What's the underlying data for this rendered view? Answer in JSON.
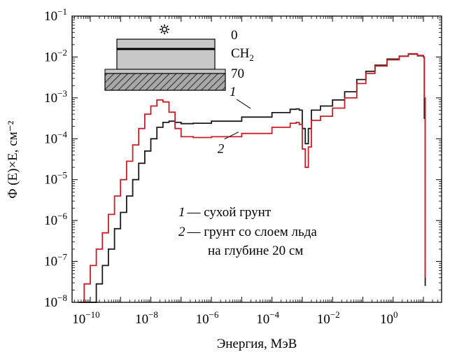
{
  "chart_data": {
    "type": "line",
    "xlabel": "Энергия, МэВ",
    "ylabel": "Φ (E)×E, см⁻²",
    "xscale": "log",
    "yscale": "log",
    "xlim_exp": [
      -10.6,
      1.6
    ],
    "ylim_exp": [
      -8,
      -1
    ],
    "x_ticks": [
      {
        "base": "10",
        "exp": "−10",
        "value": -10
      },
      {
        "base": "10",
        "exp": "−8",
        "value": -8
      },
      {
        "base": "10",
        "exp": "−6",
        "value": -6
      },
      {
        "base": "10",
        "exp": "−4",
        "value": -4
      },
      {
        "base": "10",
        "exp": "−2",
        "value": -2
      },
      {
        "base": "10",
        "exp": "0",
        "value": 0
      }
    ],
    "y_ticks": [
      {
        "base": "10",
        "exp": "−1",
        "value": -1
      },
      {
        "base": "10",
        "exp": "−2",
        "value": -2
      },
      {
        "base": "10",
        "exp": "−3",
        "value": -3
      },
      {
        "base": "10",
        "exp": "−4",
        "value": -4
      },
      {
        "base": "10",
        "exp": "−5",
        "value": -5
      },
      {
        "base": "10",
        "exp": "−6",
        "value": -6
      },
      {
        "base": "10",
        "exp": "−7",
        "value": -7
      },
      {
        "base": "10",
        "exp": "−8",
        "value": -8
      }
    ],
    "series": [
      {
        "label_number": "1",
        "color": "#1a1a1a",
        "points_log10": [
          [
            -10.3,
            -8.6
          ],
          [
            -10.0,
            -8.15
          ],
          [
            -9.8,
            -7.55
          ],
          [
            -9.6,
            -7.1
          ],
          [
            -9.4,
            -6.7
          ],
          [
            -9.2,
            -6.2
          ],
          [
            -9.0,
            -5.8
          ],
          [
            -8.8,
            -5.4
          ],
          [
            -8.6,
            -5.0
          ],
          [
            -8.4,
            -4.6
          ],
          [
            -8.2,
            -4.3
          ],
          [
            -8.0,
            -4.0
          ],
          [
            -7.8,
            -3.72
          ],
          [
            -7.6,
            -3.6
          ],
          [
            -7.4,
            -3.57
          ],
          [
            -7.2,
            -3.6
          ],
          [
            -7.0,
            -3.63
          ],
          [
            -6.6,
            -3.62
          ],
          [
            -6.0,
            -3.57
          ],
          [
            -5.0,
            -3.47
          ],
          [
            -4.0,
            -3.36
          ],
          [
            -3.4,
            -3.28
          ],
          [
            -3.2,
            -3.27
          ],
          [
            -3.1,
            -3.3
          ],
          [
            -3.0,
            -3.75
          ],
          [
            -2.9,
            -4.12
          ],
          [
            -2.8,
            -3.75
          ],
          [
            -2.7,
            -3.3
          ],
          [
            -2.4,
            -3.2
          ],
          [
            -2.0,
            -3.05
          ],
          [
            -1.6,
            -2.85
          ],
          [
            -1.2,
            -2.55
          ],
          [
            -0.9,
            -2.35
          ],
          [
            -0.6,
            -2.2
          ],
          [
            -0.2,
            -2.05
          ],
          [
            0.2,
            -1.98
          ],
          [
            0.5,
            -1.93
          ],
          [
            0.8,
            -1.97
          ],
          [
            1.0,
            -2.0
          ],
          [
            1.03,
            -3.5
          ],
          [
            1.06,
            -7.6
          ]
        ]
      },
      {
        "label_number": "2",
        "color": "#c81e28",
        "points_log10": [
          [
            -10.4,
            -8.0
          ],
          [
            -10.2,
            -7.55
          ],
          [
            -10.0,
            -7.1
          ],
          [
            -9.8,
            -6.7
          ],
          [
            -9.6,
            -6.3
          ],
          [
            -9.4,
            -5.85
          ],
          [
            -9.2,
            -5.4
          ],
          [
            -9.0,
            -5.0
          ],
          [
            -8.8,
            -4.55
          ],
          [
            -8.6,
            -4.15
          ],
          [
            -8.4,
            -3.75
          ],
          [
            -8.2,
            -3.4
          ],
          [
            -8.0,
            -3.2
          ],
          [
            -7.8,
            -3.05
          ],
          [
            -7.6,
            -3.1
          ],
          [
            -7.4,
            -3.35
          ],
          [
            -7.2,
            -3.75
          ],
          [
            -7.0,
            -3.95
          ],
          [
            -6.6,
            -3.97
          ],
          [
            -6.0,
            -3.95
          ],
          [
            -5.0,
            -3.87
          ],
          [
            -4.0,
            -3.72
          ],
          [
            -3.4,
            -3.62
          ],
          [
            -3.2,
            -3.6
          ],
          [
            -3.1,
            -3.65
          ],
          [
            -3.0,
            -4.25
          ],
          [
            -2.9,
            -4.7
          ],
          [
            -2.8,
            -4.2
          ],
          [
            -2.7,
            -3.55
          ],
          [
            -2.4,
            -3.45
          ],
          [
            -2.0,
            -3.25
          ],
          [
            -1.6,
            -3.0
          ],
          [
            -1.2,
            -2.65
          ],
          [
            -0.9,
            -2.4
          ],
          [
            -0.6,
            -2.22
          ],
          [
            -0.2,
            -2.07
          ],
          [
            0.2,
            -1.98
          ],
          [
            0.5,
            -1.92
          ],
          [
            0.8,
            -1.96
          ],
          [
            1.0,
            -2.0
          ],
          [
            1.03,
            -3.0
          ],
          [
            1.06,
            -7.4
          ]
        ]
      }
    ],
    "curve_labels": [
      {
        "text": "1",
        "x_exp": -5.4,
        "y_exp": -2.95
      },
      {
        "text": "2",
        "x_exp": -5.8,
        "y_exp": -4.35
      }
    ],
    "legend": [
      {
        "num": "1",
        "text": "— сухой грунт"
      },
      {
        "num": "2",
        "text": "— грунт со слоем льда"
      },
      {
        "num": "",
        "text": "на глубине 20 см"
      }
    ],
    "inset": {
      "top_label": "0",
      "mid_label": "CH",
      "mid_sub": "2",
      "bottom_label": "70"
    }
  }
}
